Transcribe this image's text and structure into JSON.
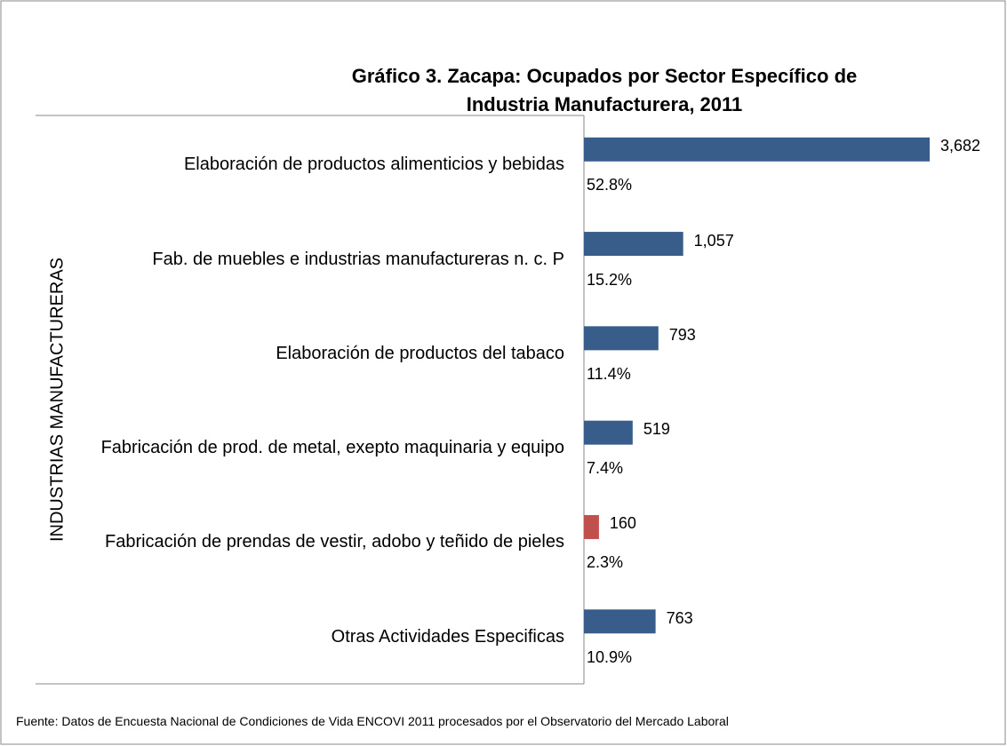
{
  "chart_data": {
    "type": "hbar",
    "title": "Gráfico 3. Zacapa: Ocupados por Sector Específico de Industria Manufacturera, 2011",
    "y_label": "INDUSTRIAS MANUFACTURERAS",
    "categories": [
      "Elaboración de productos alimenticios y bebidas",
      "Fab. de muebles e industrias manufactureras n. c. P",
      "Elaboración de productos del tabaco",
      "Fabricación de prod. de metal, exepto maquinaria y equipo",
      "Fabricación de prendas de vestir, adobo y teñido de pieles",
      "Otras Actividades Especificas"
    ],
    "values": [
      3682,
      1057,
      793,
      519,
      160,
      763
    ],
    "value_labels": [
      "3,682",
      "1,057",
      "793",
      "519",
      "160",
      "763"
    ],
    "percent_labels": [
      "52.8%",
      "15.2%",
      "11.4%",
      "7.4%",
      "2.3%",
      "10.9%"
    ],
    "colors": [
      "#385d8a",
      "#385d8a",
      "#385d8a",
      "#385d8a",
      "#c0504d",
      "#385d8a"
    ],
    "xlim": [
      0,
      4000
    ],
    "source": "Fuente: Datos de Encuesta Nacional de Condiciones de Vida ENCOVI 2011 procesados por el Observatorio del Mercado Laboral"
  }
}
